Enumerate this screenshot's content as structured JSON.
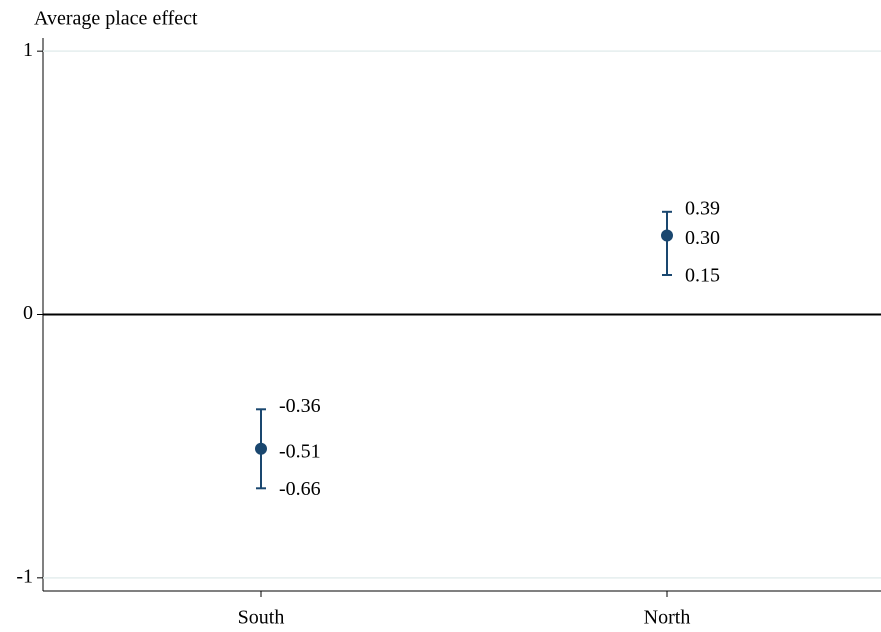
{
  "chart_data": {
    "type": "errorbar",
    "y_label": "Average place effect",
    "categories": [
      "South",
      "North"
    ],
    "values": [
      -0.51,
      0.3
    ],
    "value_labels": [
      "-0.51",
      "0.30"
    ],
    "lower": [
      -0.66,
      0.15
    ],
    "upper": [
      -0.36,
      0.39
    ],
    "color": "#1a476f",
    "ylim": [
      -1.05,
      1.05
    ],
    "yticks": [
      -1,
      0,
      1
    ],
    "grid": true,
    "hline": 0
  }
}
